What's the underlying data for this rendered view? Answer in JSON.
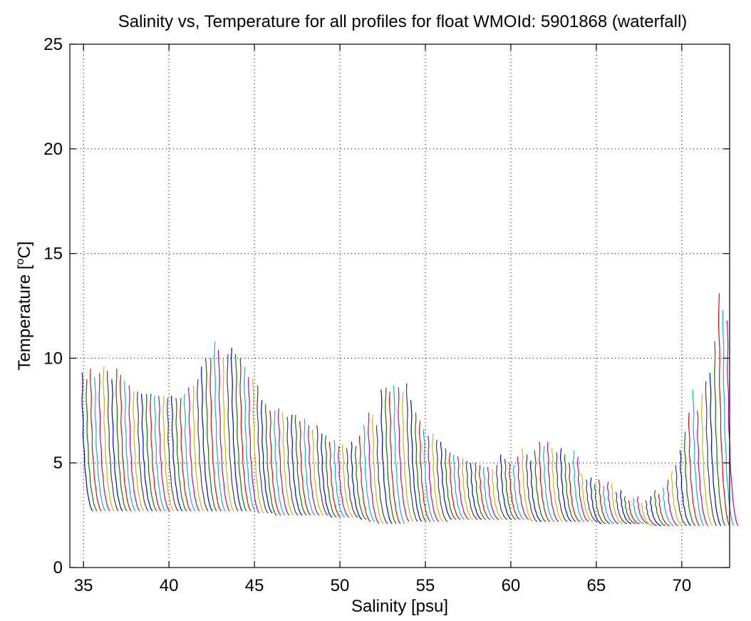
{
  "chart_data": {
    "type": "line",
    "title": "Salinity vs, Temperature for all profiles for float WMOId: 5901868 (waterfall)",
    "xlabel": "Salinity [psu]",
    "ylabel_main": "Temperature [",
    "ylabel_sup": "o",
    "ylabel_end": "C]",
    "xlim": [
      34.2,
      72.8
    ],
    "ylim": [
      0,
      25
    ],
    "x_ticks": [
      "35",
      "40",
      "45",
      "50",
      "55",
      "60",
      "65",
      "70"
    ],
    "y_ticks": [
      "0",
      "5",
      "10",
      "15",
      "20",
      "25"
    ],
    "grid": true,
    "waterfall_offset_psu": 0.25,
    "line_colors": [
      "#0000ff",
      "#008000",
      "#ff0000",
      "#00bfbf",
      "#bf00bf",
      "#bfbf00",
      "#404040"
    ],
    "series_start_salinity": 35.0,
    "surface_temperatures": [
      9.3,
      9.0,
      9.5,
      9.1,
      9.3,
      9.6,
      9.4,
      9.0,
      9.5,
      9.2,
      8.9,
      8.7,
      8.4,
      8.4,
      8.3,
      8.3,
      8.3,
      8.2,
      8.2,
      8.2,
      8.1,
      8.2,
      8.1,
      8.1,
      8.3,
      8.6,
      8.7,
      9.0,
      9.6,
      10.0,
      10.0,
      10.8,
      10.4,
      10.0,
      10.2,
      10.5,
      10.2,
      10.0,
      9.6,
      9.1,
      9.0,
      8.7,
      8.0,
      7.8,
      7.5,
      7.5,
      7.6,
      7.4,
      7.2,
      7.3,
      7.3,
      7.0,
      7.1,
      6.8,
      6.6,
      6.8,
      6.4,
      6.3,
      6.0,
      6.1,
      5.8,
      5.9,
      5.7,
      6.0,
      5.8,
      6.3,
      6.8,
      7.4,
      7.3,
      6.8,
      8.5,
      8.6,
      8.4,
      8.7,
      8.6,
      8.4,
      8.8,
      8.0,
      7.4,
      7.0,
      6.6,
      6.3,
      6.4,
      6.1,
      6.0,
      5.7,
      5.5,
      5.4,
      5.3,
      5.2,
      5.1,
      5.0,
      5.0,
      4.9,
      4.8,
      4.8,
      4.7,
      4.9,
      5.4,
      5.2,
      5.0,
      4.9,
      5.3,
      5.7,
      5.4,
      5.1,
      5.6,
      6.0,
      5.8,
      6.0,
      5.7,
      5.5,
      5.7,
      5.4,
      5.0,
      5.6,
      5.3,
      4.5,
      4.2,
      4.3,
      4.0,
      4.2,
      3.9,
      4.1,
      4.0,
      3.6,
      3.7,
      3.4,
      3.2,
      3.3,
      3.4,
      3.1,
      3.2,
      3.4,
      3.7,
      3.5,
      3.8,
      4.2,
      4.6,
      4.9,
      5.6,
      6.5,
      7.4,
      8.5,
      7.5,
      8.3,
      8.9,
      9.3,
      10.8,
      13.1,
      12.3,
      11.8,
      10.7
    ],
    "deep_temperatures": [
      2.7,
      2.7,
      2.7,
      2.7,
      2.7,
      2.7,
      2.7,
      2.7,
      2.7,
      2.7,
      2.7,
      2.7,
      2.7,
      2.7,
      2.7,
      2.7,
      2.7,
      2.7,
      2.7,
      2.7,
      2.7,
      2.7,
      2.7,
      2.7,
      2.7,
      2.7,
      2.7,
      2.7,
      2.7,
      2.7,
      2.7,
      2.7,
      2.7,
      2.7,
      2.7,
      2.7,
      2.7,
      2.7,
      2.7,
      2.6,
      2.6,
      2.6,
      2.6,
      2.5,
      2.5,
      2.5,
      2.5,
      2.5,
      2.5,
      2.5,
      2.5,
      2.5,
      2.5,
      2.5,
      2.5,
      2.5,
      2.4,
      2.4,
      2.4,
      2.4,
      2.4,
      2.4,
      2.4,
      2.3,
      2.3,
      2.2,
      2.2,
      2.1,
      2.1,
      2.1,
      2.1,
      2.1,
      2.1,
      2.1,
      2.2,
      2.2,
      2.2,
      2.2,
      2.2,
      2.2,
      2.2,
      2.2,
      2.2,
      2.2,
      2.3,
      2.3,
      2.3,
      2.3,
      2.3,
      2.3,
      2.3,
      2.3,
      2.3,
      2.3,
      2.3,
      2.3,
      2.3,
      2.3,
      2.3,
      2.3,
      2.3,
      2.3,
      2.3,
      2.2,
      2.2,
      2.2,
      2.2,
      2.2,
      2.2,
      2.2,
      2.2,
      2.2,
      2.2,
      2.2,
      2.2,
      2.2,
      2.2,
      2.2,
      2.2,
      2.1,
      2.1,
      2.1,
      2.1,
      2.1,
      2.1,
      2.1,
      2.1,
      2.1,
      2.1,
      2.1,
      2.1,
      2.0,
      2.0,
      2.0,
      2.0,
      2.0,
      2.0,
      2.0,
      2.0,
      2.0,
      2.0,
      2.0,
      2.0,
      2.0,
      2.0,
      2.0,
      2.0,
      2.0,
      2.0,
      2.0,
      2.0,
      2.0
    ]
  }
}
